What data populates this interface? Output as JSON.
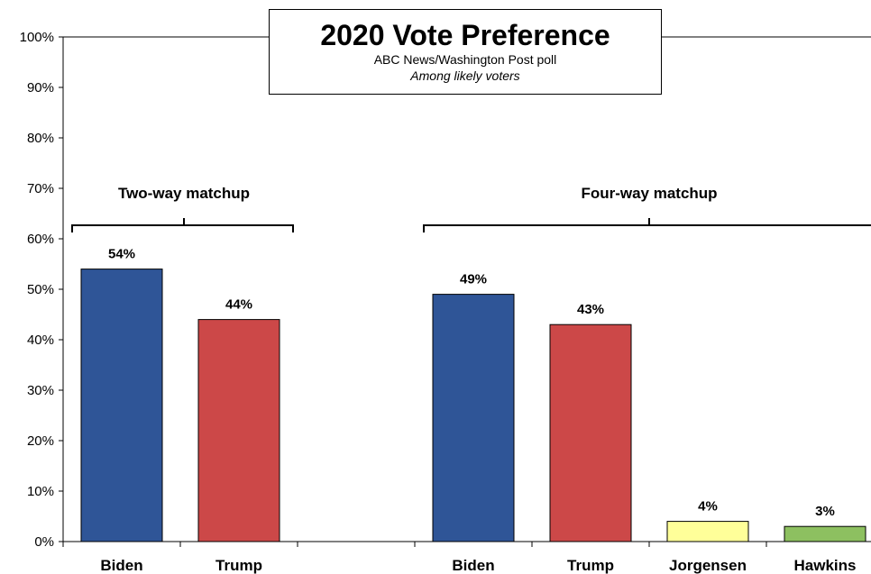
{
  "chart_data": {
    "type": "bar",
    "title": "2020 Vote Preference",
    "subtitle": "ABC News/Washington  Post poll",
    "subtitle2": "Among likely voters",
    "ylim": [
      0,
      100
    ],
    "yticks": [
      "0%",
      "10%",
      "20%",
      "30%",
      "40%",
      "50%",
      "60%",
      "70%",
      "80%",
      "90%",
      "100%"
    ],
    "grid": false,
    "groups": [
      {
        "label": "Two-way matchup",
        "bars": [
          0,
          1
        ]
      },
      {
        "label": "Four-way matchup",
        "bars": [
          3,
          4,
          5,
          6
        ]
      }
    ],
    "bars": [
      {
        "category": "Biden",
        "value": 54,
        "label": "54%",
        "color": "#2F5597"
      },
      {
        "category": "Trump",
        "value": 44,
        "label": "44%",
        "color": "#CC4848"
      },
      {
        "category": "",
        "value": null,
        "label": "",
        "color": ""
      },
      {
        "category": "Biden",
        "value": 49,
        "label": "49%",
        "color": "#2F5597"
      },
      {
        "category": "Trump",
        "value": 43,
        "label": "43%",
        "color": "#CC4848"
      },
      {
        "category": "Jorgensen",
        "value": 4,
        "label": "4%",
        "color": "#FFFF99"
      },
      {
        "category": "Hawkins",
        "value": 3,
        "label": "3%",
        "color": "#8DC060"
      }
    ]
  }
}
